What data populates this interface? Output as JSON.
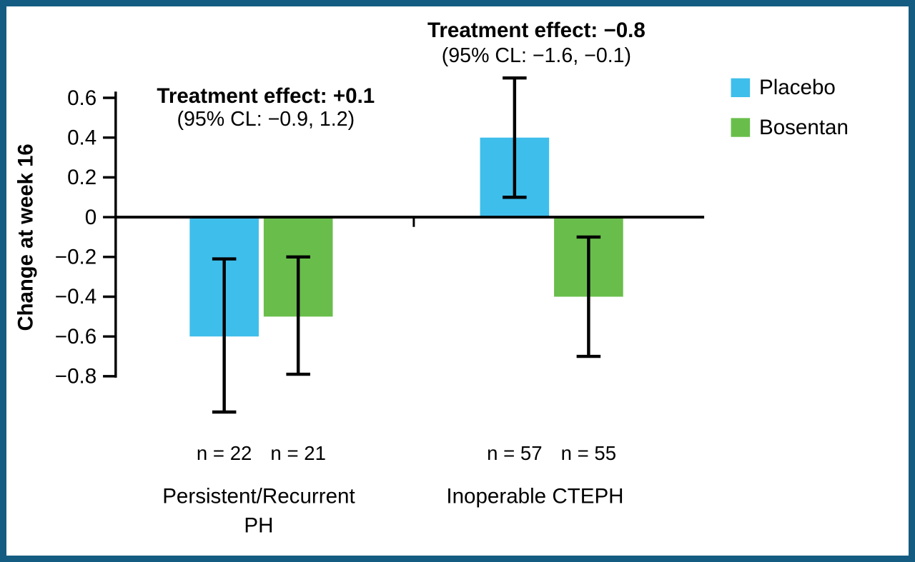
{
  "figure": {
    "border_color": "#155C82",
    "background_color": "#FFFFFF"
  },
  "chart_data": {
    "type": "bar",
    "title": "",
    "xlabel": "",
    "ylabel": "Change at week 16",
    "ylim": [
      -1.05,
      0.72
    ],
    "grid": false,
    "legend_position": "top-right",
    "yticks": [
      {
        "value": 0.6,
        "label": "0.6"
      },
      {
        "value": 0.4,
        "label": "0.4"
      },
      {
        "value": 0.2,
        "label": "0.2"
      },
      {
        "value": 0,
        "label": "0"
      },
      {
        "value": -0.2,
        "label": "−0.2"
      },
      {
        "value": -0.4,
        "label": "−0.4"
      },
      {
        "value": -0.6,
        "label": "−0.6"
      },
      {
        "value": -0.8,
        "label": "−0.8"
      }
    ],
    "series": [
      {
        "name": "Placebo",
        "color": "#3EBEEB"
      },
      {
        "name": "Bosentan",
        "color": "#69BE4B"
      }
    ],
    "groups": [
      {
        "label_lines": [
          "Persistent/Recurrent",
          "PH"
        ],
        "annotation": {
          "effect": "Treatment effect: +0.1",
          "ci": "(95% CL: −0.9, 1.2)"
        },
        "bars": [
          {
            "series": "Placebo",
            "value": -0.6,
            "ci": [
              -0.98,
              -0.21
            ],
            "n": "n = 22"
          },
          {
            "series": "Bosentan",
            "value": -0.5,
            "ci": [
              -0.79,
              -0.2
            ],
            "n": "n = 21"
          }
        ]
      },
      {
        "label_lines": [
          "Inoperable CTEPH"
        ],
        "annotation": {
          "effect": "Treatment effect: −0.8",
          "ci": "(95% CL: −1.6, −0.1)"
        },
        "bars": [
          {
            "series": "Placebo",
            "value": 0.4,
            "ci": [
              0.1,
              0.7
            ],
            "n": "n = 57"
          },
          {
            "series": "Bosentan",
            "value": -0.4,
            "ci": [
              -0.7,
              -0.1
            ],
            "n": "n = 55"
          }
        ]
      }
    ]
  }
}
